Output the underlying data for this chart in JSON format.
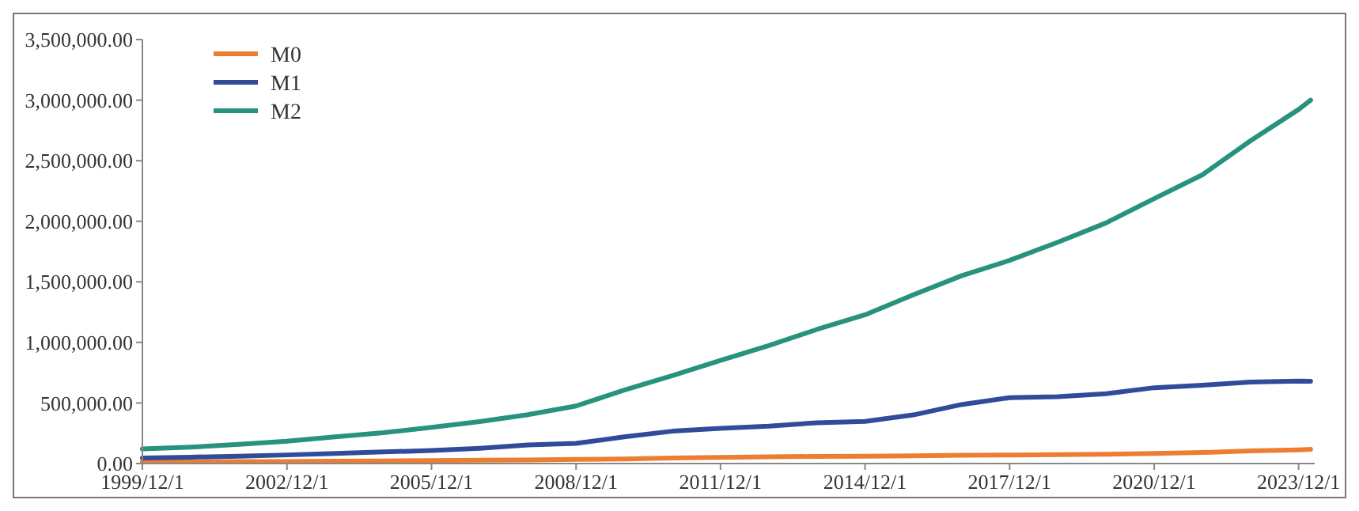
{
  "chart_data": {
    "type": "line",
    "x": [
      "1999-12",
      "2000-12",
      "2001-12",
      "2002-12",
      "2003-12",
      "2004-12",
      "2005-12",
      "2006-12",
      "2007-12",
      "2008-12",
      "2009-12",
      "2010-12",
      "2011-12",
      "2012-12",
      "2013-12",
      "2014-12",
      "2015-12",
      "2016-12",
      "2017-12",
      "2018-12",
      "2019-12",
      "2020-12",
      "2021-12",
      "2022-12",
      "2023-12",
      "2024-03"
    ],
    "series": [
      {
        "name": "M0",
        "color": "#ed7d31",
        "values": [
          13000,
          15000,
          16000,
          17000,
          20000,
          21000,
          24000,
          27000,
          30000,
          34000,
          38000,
          45000,
          51000,
          55000,
          59000,
          60000,
          63000,
          68000,
          71000,
          73000,
          77000,
          84000,
          91000,
          105000,
          113000,
          117000
        ]
      },
      {
        "name": "M1",
        "color": "#2f4b9a",
        "values": [
          46000,
          53000,
          60000,
          71000,
          84000,
          96000,
          107000,
          126000,
          153000,
          166000,
          220000,
          267000,
          290000,
          309000,
          337000,
          348000,
          401000,
          487000,
          544000,
          552000,
          576000,
          626000,
          647000,
          672000,
          680000,
          679000
        ]
      },
      {
        "name": "M2",
        "color": "#27927e",
        "values": [
          120000,
          135000,
          158000,
          185000,
          221000,
          254000,
          299000,
          346000,
          403000,
          475000,
          606000,
          726000,
          852000,
          974000,
          1107000,
          1228000,
          1392000,
          1550000,
          1677000,
          1827000,
          1986000,
          2187000,
          2383000,
          2664000,
          2923000,
          3000000
        ]
      }
    ],
    "xlim": [
      "1999-12-01",
      "2024-04-01"
    ],
    "xticks": [
      {
        "value": "1999-12-01",
        "label": "1999/12/1"
      },
      {
        "value": "2002-12-01",
        "label": "2002/12/1"
      },
      {
        "value": "2005-12-01",
        "label": "2005/12/1"
      },
      {
        "value": "2008-12-01",
        "label": "2008/12/1"
      },
      {
        "value": "2011-12-01",
        "label": "2011/12/1"
      },
      {
        "value": "2014-12-01",
        "label": "2014/12/1"
      },
      {
        "value": "2017-12-01",
        "label": "2017/12/1"
      },
      {
        "value": "2020-12-01",
        "label": "2020/12/1"
      },
      {
        "value": "2023-12-01",
        "label": "2023/12/1"
      }
    ],
    "ylim": [
      0,
      3500000
    ],
    "yticks": [
      {
        "value": 0,
        "label": "0.00"
      },
      {
        "value": 500000,
        "label": "500,000.00"
      },
      {
        "value": 1000000,
        "label": "1,000,000.00"
      },
      {
        "value": 1500000,
        "label": "1,500,000.00"
      },
      {
        "value": 2000000,
        "label": "2,000,000.00"
      },
      {
        "value": 2500000,
        "label": "2,500,000.00"
      },
      {
        "value": 3000000,
        "label": "3,000,000.00"
      },
      {
        "value": 3500000,
        "label": "3,500,000.00"
      }
    ],
    "legend": "top left",
    "marker": "none",
    "line_style": "solid"
  }
}
